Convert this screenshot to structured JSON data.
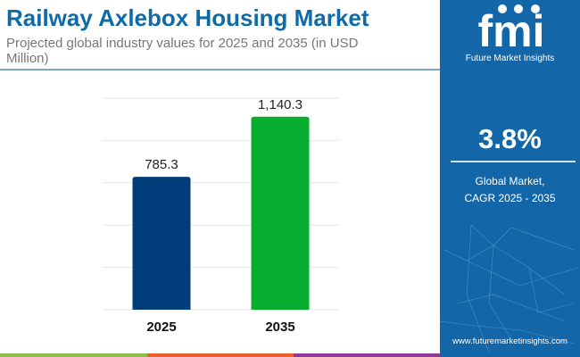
{
  "header": {
    "title": "Railway Axlebox Housing Market",
    "subtitle": "Projected global industry values for 2025 and 2035 (in USD Million)"
  },
  "chart_data": {
    "type": "bar",
    "categories": [
      "2025",
      "2035"
    ],
    "values": [
      785.3,
      1140.3
    ],
    "data_labels": [
      "785.3",
      "1,140.3"
    ],
    "bar_colors": [
      "#003b7a",
      "#06ad2e"
    ],
    "ylim": [
      0,
      1250
    ],
    "grid": true,
    "title": "Railway Axlebox Housing Market",
    "xlabel": "",
    "ylabel": ""
  },
  "side_panel": {
    "logo_text": "fmi",
    "brand": "Future Market Insights",
    "cagr_value": "3.8%",
    "cagr_label_line1": "Global Market,",
    "cagr_label_line2": "CAGR 2025 - 2035",
    "url": "www.futuremarketinsights.com",
    "background_color": "#1366a8"
  },
  "footer_strip_colors": [
    "#8cc04a",
    "#e8612c",
    "#8e3c97"
  ]
}
